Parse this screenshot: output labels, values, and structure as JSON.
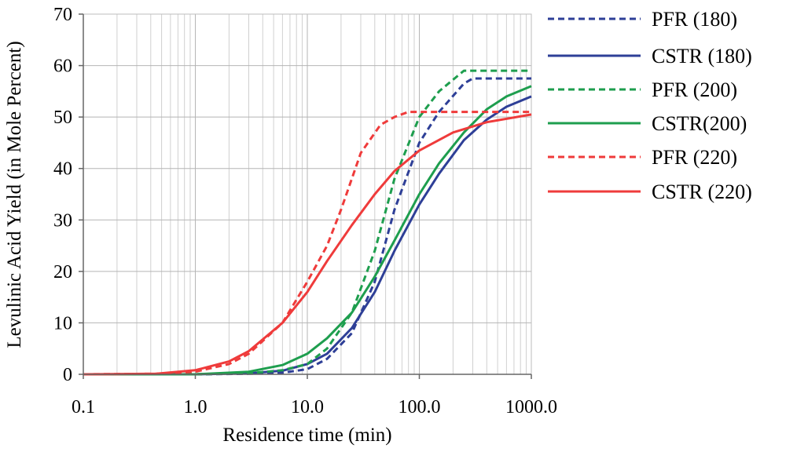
{
  "chart_data": {
    "type": "line",
    "title": "",
    "xlabel": "Residence time (min)",
    "ylabel": "Levulinic Acid Yield (in Mole Percent)",
    "xscale": "log",
    "xlim": [
      0.1,
      1000
    ],
    "ylim": [
      0,
      70
    ],
    "grid": true,
    "legend_position": "right",
    "xticks": [
      0.1,
      1,
      10,
      100,
      1000
    ],
    "xtick_labels": [
      "0.1",
      "1.0",
      "10.0",
      "100.0",
      "1000.0"
    ],
    "yticks": [
      0,
      10,
      20,
      30,
      40,
      50,
      60,
      70
    ],
    "ytick_labels": [
      "0",
      "10",
      "20",
      "30",
      "40",
      "50",
      "60",
      "70"
    ],
    "series": [
      {
        "name": "PFR (180)",
        "color": "#2e3f97",
        "dash": "dashed",
        "x": [
          0.1,
          1,
          3,
          6,
          10,
          15,
          25,
          40,
          60,
          100,
          150,
          250,
          300,
          500,
          1000
        ],
        "y": [
          0,
          0,
          0.1,
          0.3,
          1,
          3,
          8,
          18,
          32,
          45,
          51,
          56.5,
          57.5,
          57.5,
          57.5
        ]
      },
      {
        "name": "CSTR (180)",
        "color": "#2e3f97",
        "dash": "solid",
        "x": [
          0.1,
          1,
          3,
          6,
          10,
          15,
          25,
          40,
          60,
          100,
          150,
          250,
          400,
          600,
          1000
        ],
        "y": [
          0,
          0,
          0.2,
          0.7,
          2,
          4,
          9,
          16,
          24,
          33,
          39,
          45.5,
          49.5,
          52,
          54
        ]
      },
      {
        "name": "PFR (200)",
        "color": "#1e9e4e",
        "dash": "dashed",
        "x": [
          0.1,
          1,
          3,
          6,
          10,
          15,
          25,
          40,
          60,
          100,
          150,
          250,
          300,
          500,
          1000
        ],
        "y": [
          0,
          0,
          0.2,
          0.8,
          2,
          5,
          12,
          24,
          38,
          50,
          55,
          59,
          59,
          59,
          59
        ]
      },
      {
        "name": "CSTR(200)",
        "color": "#1e9e4e",
        "dash": "solid",
        "x": [
          0.1,
          1,
          3,
          6,
          10,
          15,
          25,
          40,
          60,
          100,
          150,
          250,
          400,
          600,
          1000
        ],
        "y": [
          0,
          0,
          0.5,
          1.8,
          4,
          7,
          12,
          19,
          26,
          35,
          41,
          47,
          51.5,
          54,
          56
        ]
      },
      {
        "name": "PFR (220)",
        "color": "#ef3b3b",
        "dash": "dashed",
        "x": [
          0.1,
          0.45,
          1,
          2,
          3,
          6,
          10,
          15,
          20,
          30,
          45,
          60,
          80,
          100,
          300,
          1000
        ],
        "y": [
          0,
          0.1,
          0.5,
          2,
          4,
          10,
          18,
          25,
          32,
          43,
          48.5,
          50,
          51,
          51,
          51,
          51
        ]
      },
      {
        "name": "CSTR (220)",
        "color": "#ef3b3b",
        "dash": "solid",
        "x": [
          0.1,
          0.45,
          1,
          2,
          3,
          6,
          10,
          15,
          25,
          40,
          60,
          100,
          200,
          400,
          1000
        ],
        "y": [
          0,
          0.1,
          0.8,
          2.5,
          4.5,
          10,
          16,
          22,
          29,
          35,
          39.5,
          43.5,
          47,
          49,
          50.5
        ]
      }
    ]
  }
}
